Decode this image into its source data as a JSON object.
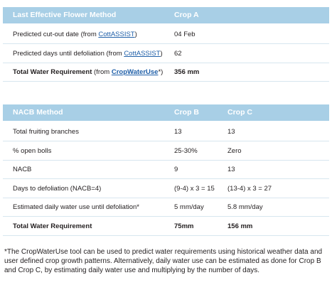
{
  "table1": {
    "header": [
      "Last Effective Flower Method",
      "Crop A"
    ],
    "rows": [
      [
        [
          {
            "text": "Predicted cut-out date (from "
          },
          {
            "link": "CottASSIST"
          },
          {
            "text": ")"
          }
        ],
        "04 Feb"
      ],
      [
        [
          {
            "text": "Predicted days until defoliation (from "
          },
          {
            "link": "CottASSIST"
          },
          {
            "text": ")"
          }
        ],
        "62"
      ],
      [
        [
          {
            "text": "Total Water Requirement"
          },
          {
            "text": " (from "
          },
          {
            "link": "CropWaterUse"
          },
          {
            "text": "*)"
          }
        ],
        "356 mm"
      ]
    ]
  },
  "table2": {
    "header": [
      "NACB Method",
      "Crop B",
      "Crop C"
    ],
    "rows": [
      [
        [
          {
            "text": "Total fruiting branches"
          }
        ],
        "13",
        "13"
      ],
      [
        [
          {
            "text": "% open bolls"
          }
        ],
        "25-30%",
        "Zero"
      ],
      [
        [
          {
            "text": "NACB"
          }
        ],
        "9",
        "13"
      ],
      [
        [
          {
            "text": "Days to defoliation (NACB=4)"
          }
        ],
        "(9-4) x 3 = 15",
        "(13-4) x 3 = 27"
      ],
      [
        [
          {
            "text": "Estimated daily water use until defoliation*"
          }
        ],
        "5 mm/day",
        "5.8 mm/day"
      ],
      [
        [
          {
            "text": "Total Water Requirement"
          }
        ],
        "75mm",
        "156 mm"
      ]
    ]
  },
  "footnote": "*The CropWaterUse tool can be used to predict water requirements using historical weather data and user defined crop growth patterns. Alternatively, daily water use can be estimated as done for Crop B and Crop C, by estimating daily water use and multiplying by the number of days."
}
